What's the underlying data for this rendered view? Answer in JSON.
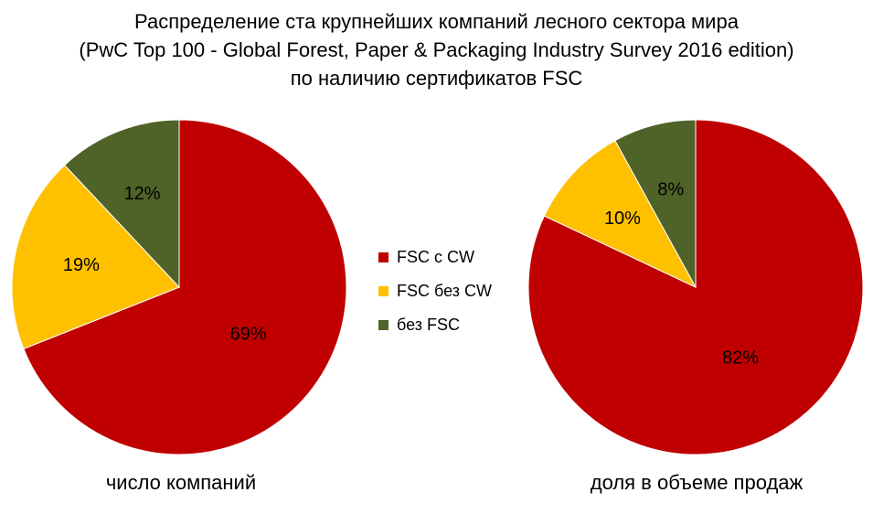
{
  "title": {
    "line1": "Распределение ста крупнейших компаний лесного сектора мира",
    "line2": "(PwC Top 100 - Global Forest, Paper & Packaging Industry Survey 2016 edition)",
    "line3": "по наличию сертификатов FSC"
  },
  "legend": [
    {
      "label": "FSC с CW",
      "color": "#c00000"
    },
    {
      "label": "FSC без CW",
      "color": "#ffc000"
    },
    {
      "label": "без FSC",
      "color": "#4f6228"
    }
  ],
  "chart_data": [
    {
      "type": "pie",
      "caption": "число компаний",
      "categories": [
        "FSC с CW",
        "FSC без CW",
        "без FSC"
      ],
      "values": [
        69,
        19,
        12
      ],
      "labels": [
        "69%",
        "19%",
        "12%"
      ],
      "colors": [
        "#c00000",
        "#ffc000",
        "#4f6228"
      ]
    },
    {
      "type": "pie",
      "caption": "доля в объеме продаж",
      "categories": [
        "FSC с CW",
        "FSC без CW",
        "без FSC"
      ],
      "values": [
        82,
        10,
        8
      ],
      "labels": [
        "82%",
        "10%",
        "8%"
      ],
      "colors": [
        "#c00000",
        "#ffc000",
        "#4f6228"
      ]
    }
  ]
}
